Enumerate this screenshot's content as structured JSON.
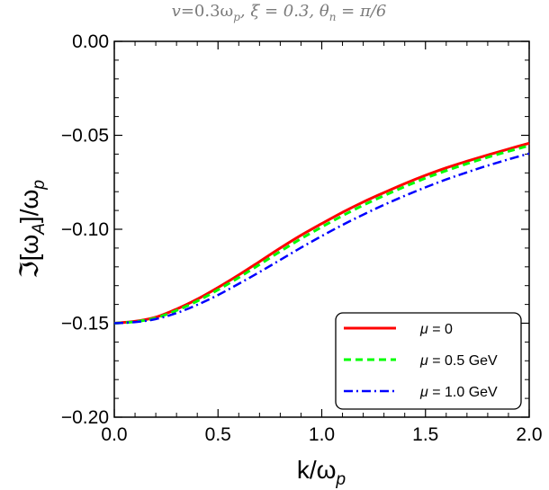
{
  "chart_data": {
    "type": "line",
    "title": "v=0.3ω_p, ξ = 0.3, θ_n = π/6",
    "title_parts": {
      "v_label": "v",
      "v_value": "=0.3ω",
      "v_sub": "p",
      "xi_part": ", ξ = 0.3, θ",
      "theta_sub": "n",
      "theta_value": " = π/6"
    },
    "xlabel": "k/ω_p",
    "xlabel_parts": {
      "main": "k/ω",
      "sub": "p"
    },
    "ylabel": "ℑ[ω_A]/ω_p",
    "ylabel_parts": {
      "pre": "ℑ[ω",
      "sub1": "A",
      "mid": "]/ω",
      "sub2": "p"
    },
    "xlim": [
      0.0,
      2.0
    ],
    "ylim": [
      -0.2,
      0.0
    ],
    "xticks": [
      "0.0",
      "0.5",
      "1.0",
      "1.5",
      "2.0"
    ],
    "yticks": [
      "0.00",
      "−0.05",
      "−0.10",
      "−0.15",
      "−0.20"
    ],
    "grid": false,
    "legend_position": "bottom-right",
    "series": [
      {
        "name": "μ = 0",
        "color": "#ff0000",
        "style": "solid",
        "x": [
          0.0,
          0.1,
          0.2,
          0.3,
          0.4,
          0.5,
          0.6,
          0.7,
          0.8,
          0.9,
          1.0,
          1.1,
          1.2,
          1.3,
          1.4,
          1.5,
          1.6,
          1.7,
          1.8,
          1.9,
          2.0
        ],
        "y": [
          -0.15,
          -0.149,
          -0.1468,
          -0.1425,
          -0.1372,
          -0.131,
          -0.1243,
          -0.1172,
          -0.11,
          -0.1032,
          -0.097,
          -0.091,
          -0.0855,
          -0.0805,
          -0.0757,
          -0.0713,
          -0.0673,
          -0.0638,
          -0.0605,
          -0.0573,
          -0.0542
        ]
      },
      {
        "name": "μ = 0.5 GeV",
        "color": "#00ff00",
        "style": "dashed",
        "x": [
          0.0,
          0.1,
          0.2,
          0.3,
          0.4,
          0.5,
          0.6,
          0.7,
          0.8,
          0.9,
          1.0,
          1.1,
          1.2,
          1.3,
          1.4,
          1.5,
          1.6,
          1.7,
          1.8,
          1.9,
          2.0
        ],
        "y": [
          -0.15,
          -0.1492,
          -0.1472,
          -0.1432,
          -0.1382,
          -0.1322,
          -0.1257,
          -0.1188,
          -0.1118,
          -0.105,
          -0.0988,
          -0.0928,
          -0.0872,
          -0.0821,
          -0.0773,
          -0.0728,
          -0.0688,
          -0.0651,
          -0.0617,
          -0.0585,
          -0.0555
        ]
      },
      {
        "name": "μ = 1.0 GeV",
        "color": "#0000ff",
        "style": "dashdot",
        "x": [
          0.0,
          0.1,
          0.2,
          0.3,
          0.4,
          0.5,
          0.6,
          0.7,
          0.8,
          0.9,
          1.0,
          1.1,
          1.2,
          1.3,
          1.4,
          1.5,
          1.6,
          1.7,
          1.8,
          1.9,
          2.0
        ],
        "y": [
          -0.15,
          -0.1494,
          -0.1478,
          -0.1446,
          -0.1402,
          -0.135,
          -0.129,
          -0.1228,
          -0.1163,
          -0.1098,
          -0.1036,
          -0.0977,
          -0.0922,
          -0.087,
          -0.0822,
          -0.0777,
          -0.0735,
          -0.0697,
          -0.0661,
          -0.0628,
          -0.0597
        ]
      }
    ],
    "legend_parts": [
      {
        "mu": "μ",
        "rest": " = 0"
      },
      {
        "mu": "μ",
        "rest": " = 0.5 GeV"
      },
      {
        "mu": "μ",
        "rest": " = 1.0 GeV"
      }
    ]
  }
}
